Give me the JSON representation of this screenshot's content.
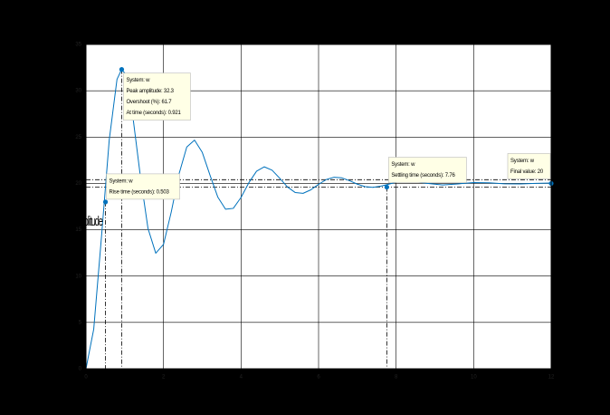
{
  "chart_data": {
    "type": "line",
    "ylabel": "Amplitude",
    "x": [
      0,
      0.2,
      0.4,
      0.6,
      0.8,
      0.92,
      1.0,
      1.2,
      1.4,
      1.6,
      1.8,
      2.0,
      2.2,
      2.4,
      2.6,
      2.8,
      3.0,
      3.2,
      3.4,
      3.6,
      3.8,
      4.0,
      4.2,
      4.4,
      4.6,
      4.8,
      5.0,
      5.2,
      5.4,
      5.6,
      5.8,
      6.0,
      6.2,
      6.4,
      6.6,
      6.8,
      7.0,
      7.2,
      7.4,
      7.6,
      7.8,
      8.0,
      8.4,
      8.8,
      9.2,
      9.6,
      10.0,
      10.4,
      10.8,
      11.2,
      11.6,
      12.0
    ],
    "series": [
      {
        "name": "w",
        "color": "#0072bd",
        "values": [
          0,
          4.28,
          14.24,
          24.69,
          31.23,
          32.3,
          31.9,
          27.52,
          20.88,
          15.14,
          12.47,
          13.42,
          16.92,
          21.02,
          23.93,
          24.67,
          23.35,
          20.88,
          18.53,
          17.22,
          17.31,
          18.49,
          20.07,
          21.32,
          21.79,
          21.43,
          20.55,
          19.61,
          19.01,
          18.93,
          19.31,
          19.9,
          20.42,
          20.67,
          20.6,
          20.29,
          19.92,
          19.65,
          19.58,
          19.7,
          19.91,
          20.13,
          20.24,
          20.0,
          19.84,
          19.95,
          20.09,
          20.06,
          19.96,
          19.95,
          20.01,
          20.04
        ]
      }
    ],
    "xlim": [
      0,
      12
    ],
    "ylim": [
      0,
      35
    ],
    "xticks": [
      0,
      2,
      4,
      6,
      8,
      10,
      12
    ],
    "yticks": [
      0,
      5,
      10,
      15,
      20,
      25,
      30,
      35
    ],
    "grid": true,
    "settling_band": [
      19.6,
      20.4
    ],
    "datatips": [
      {
        "x": 0.921,
        "y": 32.3,
        "lines": [
          "System: w",
          "Peak amplitude: 32.3",
          "Overshoot (%): 61.7",
          "At time (seconds): 0.921"
        ]
      },
      {
        "x": 0.503,
        "y": 18,
        "lines": [
          "System: w",
          "Rise time (seconds): 0.503"
        ]
      },
      {
        "x": 7.76,
        "y": 19.6,
        "lines": [
          "System: w",
          "Settling time (seconds): 7.76"
        ]
      },
      {
        "x": 12,
        "y": 20,
        "lines": [
          "System: w",
          "Final value: 20"
        ]
      }
    ]
  }
}
